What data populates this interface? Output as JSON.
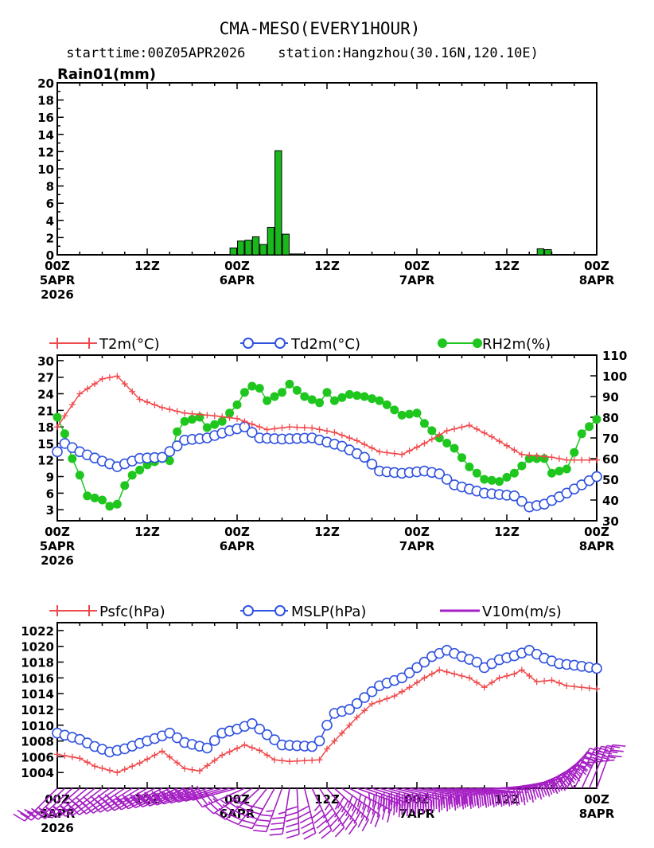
{
  "title": "CMA-MESO(EVERY1HOUR)",
  "subtitle": "starttime:00Z05APR2026    station:Hangzhou(30.16N,120.10E)",
  "time_labels": [
    {
      "hour": 0,
      "lines": [
        "00Z",
        "5APR",
        "2026"
      ]
    },
    {
      "hour": 12,
      "lines": [
        "12Z"
      ]
    },
    {
      "hour": 24,
      "lines": [
        "00Z",
        "6APR"
      ]
    },
    {
      "hour": 36,
      "lines": [
        "12Z"
      ]
    },
    {
      "hour": 48,
      "lines": [
        "00Z",
        "7APR"
      ]
    },
    {
      "hour": 60,
      "lines": [
        "12Z"
      ]
    },
    {
      "hour": 72,
      "lines": [
        "00Z",
        "8APR"
      ]
    }
  ],
  "legend": {
    "t2m": "T2m(°C)",
    "td2m": "Td2m(°C)",
    "rh2m": "RH2m(%)",
    "psfc": "Psfc(hPa)",
    "mslp": "MSLP(hPa)",
    "v10m": "V10m(m/s)"
  },
  "colors": {
    "rain_bar": "#19b81c",
    "t2m": "#f0494c",
    "td2m": "#2f52e0",
    "rh2m": "#1ec61e",
    "psfc": "#f0494c",
    "mslp": "#2f52e0",
    "wind": "#a51fc4"
  },
  "chart_data": [
    {
      "type": "bar",
      "ylabel": "Rain01(mm)",
      "xunit": "forecast hour from 00Z05APR2026",
      "ylim": [
        0,
        20
      ],
      "yticks": [
        0,
        2,
        4,
        6,
        8,
        10,
        12,
        14,
        16,
        18,
        20
      ],
      "xticks": [
        0,
        12,
        24,
        36,
        48,
        60,
        72
      ],
      "x": [
        24,
        25,
        26,
        27,
        28,
        29,
        30,
        31,
        32,
        33,
        65,
        66
      ],
      "values": [
        0.8,
        1.6,
        1.7,
        2.1,
        1.2,
        3.2,
        12.1,
        2.4,
        0.1,
        0.1,
        0.7,
        0.6
      ]
    },
    {
      "type": "line",
      "xunit": "forecast hour from 00Z05APR2026",
      "xticks": [
        0,
        12,
        24,
        36,
        48,
        60,
        72
      ],
      "ylim_left": [
        1,
        31
      ],
      "yticks_left": [
        3,
        6,
        9,
        12,
        15,
        18,
        21,
        24,
        27,
        30
      ],
      "ylim_right": [
        30,
        110
      ],
      "yticks_right": [
        30,
        40,
        50,
        60,
        70,
        80,
        90,
        100,
        110
      ],
      "series": [
        {
          "name": "T2m(°C)",
          "axis": "left",
          "keypoints": [
            [
              0,
              18
            ],
            [
              3,
              24
            ],
            [
              6,
              26.7
            ],
            [
              8,
              27.2
            ],
            [
              11,
              23
            ],
            [
              14,
              21.5
            ],
            [
              17,
              20.5
            ],
            [
              21,
              20
            ],
            [
              24,
              19.5
            ],
            [
              28,
              17.5
            ],
            [
              31,
              18
            ],
            [
              34,
              17.8
            ],
            [
              37,
              17
            ],
            [
              40,
              15.5
            ],
            [
              43,
              13.5
            ],
            [
              46,
              13
            ],
            [
              49,
              15
            ],
            [
              52,
              17.3
            ],
            [
              55,
              18.3
            ],
            [
              58,
              16.2
            ],
            [
              62,
              13
            ],
            [
              66,
              12.5
            ],
            [
              68,
              12
            ],
            [
              72,
              12
            ]
          ]
        },
        {
          "name": "Td2m(°C)",
          "axis": "left",
          "keypoints": [
            [
              0,
              13.5
            ],
            [
              1,
              15
            ],
            [
              3,
              13.5
            ],
            [
              6,
              11.8
            ],
            [
              8,
              10.8
            ],
            [
              11,
              12.3
            ],
            [
              14,
              12.5
            ],
            [
              17,
              15.6
            ],
            [
              20,
              16
            ],
            [
              23,
              17.3
            ],
            [
              25,
              18
            ],
            [
              27,
              16
            ],
            [
              30,
              15.8
            ],
            [
              34,
              16
            ],
            [
              38,
              14.5
            ],
            [
              41,
              12.5
            ],
            [
              43,
              10
            ],
            [
              46,
              9.6
            ],
            [
              49,
              10
            ],
            [
              51,
              9.5
            ],
            [
              53,
              7.5
            ],
            [
              57,
              6
            ],
            [
              61,
              5.5
            ],
            [
              63,
              3.5
            ],
            [
              65,
              4
            ],
            [
              68,
              6
            ],
            [
              72,
              9
            ]
          ]
        },
        {
          "name": "RH2m(%)",
          "axis": "right",
          "keypoints": [
            [
              0,
              80
            ],
            [
              1,
              72
            ],
            [
              2,
              60
            ],
            [
              3,
              52
            ],
            [
              4,
              42
            ],
            [
              6,
              40
            ],
            [
              7,
              37
            ],
            [
              8,
              38
            ],
            [
              9,
              47
            ],
            [
              10,
              52
            ],
            [
              12,
              57
            ],
            [
              14,
              60
            ],
            [
              15,
              59
            ],
            [
              16,
              73
            ],
            [
              17,
              78
            ],
            [
              19,
              80
            ],
            [
              20,
              75
            ],
            [
              22,
              78
            ],
            [
              23,
              82
            ],
            [
              24,
              86
            ],
            [
              25,
              92
            ],
            [
              26,
              95
            ],
            [
              27,
              94
            ],
            [
              28,
              88
            ],
            [
              30,
              92
            ],
            [
              31,
              96
            ],
            [
              33,
              90
            ],
            [
              35,
              87
            ],
            [
              36,
              92
            ],
            [
              37,
              88
            ],
            [
              39,
              91
            ],
            [
              41,
              90
            ],
            [
              43,
              88
            ],
            [
              44,
              86
            ],
            [
              46,
              81
            ],
            [
              48,
              82
            ],
            [
              49,
              77
            ],
            [
              51,
              70
            ],
            [
              53,
              65
            ],
            [
              55,
              56
            ],
            [
              57,
              50
            ],
            [
              59,
              49
            ],
            [
              61,
              53
            ],
            [
              63,
              60
            ],
            [
              65,
              60
            ],
            [
              66,
              53
            ],
            [
              68,
              55
            ],
            [
              69,
              63
            ],
            [
              70,
              72
            ],
            [
              72,
              79
            ]
          ]
        }
      ]
    },
    {
      "type": "line",
      "xunit": "forecast hour from 00Z05APR2026",
      "xticks": [
        0,
        12,
        24,
        36,
        48,
        60,
        72
      ],
      "ylim": [
        1002,
        1023
      ],
      "yticks": [
        1004,
        1006,
        1008,
        1010,
        1012,
        1014,
        1016,
        1018,
        1020,
        1022
      ],
      "series": [
        {
          "name": "Psfc(hPa)",
          "keypoints": [
            [
              0,
              1006.3
            ],
            [
              3,
              1005.8
            ],
            [
              5,
              1004.8
            ],
            [
              8,
              1004
            ],
            [
              11,
              1005.2
            ],
            [
              14,
              1006.7
            ],
            [
              17,
              1004.5
            ],
            [
              19,
              1004.2
            ],
            [
              22,
              1006.2
            ],
            [
              25,
              1007.5
            ],
            [
              27,
              1006.8
            ],
            [
              29,
              1005.6
            ],
            [
              31,
              1005.4
            ],
            [
              33,
              1005.5
            ],
            [
              35,
              1005.6
            ],
            [
              36,
              1007
            ],
            [
              38,
              1009
            ],
            [
              40,
              1011
            ],
            [
              42,
              1012.7
            ],
            [
              45,
              1013.7
            ],
            [
              47,
              1014.8
            ],
            [
              49,
              1016
            ],
            [
              51,
              1017
            ],
            [
              53,
              1016.5
            ],
            [
              55,
              1016
            ],
            [
              57,
              1014.8
            ],
            [
              59,
              1016
            ],
            [
              61,
              1016.5
            ],
            [
              62,
              1017
            ],
            [
              64,
              1015.5
            ],
            [
              66,
              1015.7
            ],
            [
              68,
              1015
            ],
            [
              70,
              1014.8
            ],
            [
              72,
              1014.6
            ]
          ]
        },
        {
          "name": "MSLP(hPa)",
          "keypoints": [
            [
              0,
              1009
            ],
            [
              3,
              1008.2
            ],
            [
              5,
              1007.3
            ],
            [
              7,
              1006.6
            ],
            [
              9,
              1007
            ],
            [
              11,
              1007.7
            ],
            [
              13,
              1008.3
            ],
            [
              15,
              1009
            ],
            [
              17,
              1007.8
            ],
            [
              20,
              1007.1
            ],
            [
              22,
              1009
            ],
            [
              24,
              1009.5
            ],
            [
              26,
              1010.2
            ],
            [
              28,
              1008.8
            ],
            [
              30,
              1007.5
            ],
            [
              32,
              1007.4
            ],
            [
              34,
              1007.3
            ],
            [
              35,
              1008
            ],
            [
              36,
              1010
            ],
            [
              37,
              1011.5
            ],
            [
              39,
              1012
            ],
            [
              41,
              1013.5
            ],
            [
              43,
              1015
            ],
            [
              46,
              1016
            ],
            [
              48,
              1017.3
            ],
            [
              50,
              1018.7
            ],
            [
              52,
              1019.5
            ],
            [
              54,
              1018.7
            ],
            [
              56,
              1018
            ],
            [
              57,
              1017.3
            ],
            [
              59,
              1018.3
            ],
            [
              61,
              1018.8
            ],
            [
              63,
              1019.5
            ],
            [
              65,
              1018.5
            ],
            [
              67,
              1017.8
            ],
            [
              69,
              1017.6
            ],
            [
              72,
              1017.2
            ]
          ]
        },
        {
          "name": "V10m(m/s)",
          "type": "wind_barbs",
          "keypoints": [
            [
              0,
              225,
              3
            ],
            [
              12,
              240,
              4
            ],
            [
              24,
              255,
              4
            ],
            [
              30,
              200,
              5
            ],
            [
              34,
              155,
              6
            ],
            [
              40,
              110,
              7
            ],
            [
              48,
              100,
              6
            ],
            [
              56,
              95,
              5
            ],
            [
              62,
              75,
              5
            ],
            [
              68,
              30,
              4
            ],
            [
              72,
              20,
              4
            ]
          ]
        }
      ]
    }
  ]
}
